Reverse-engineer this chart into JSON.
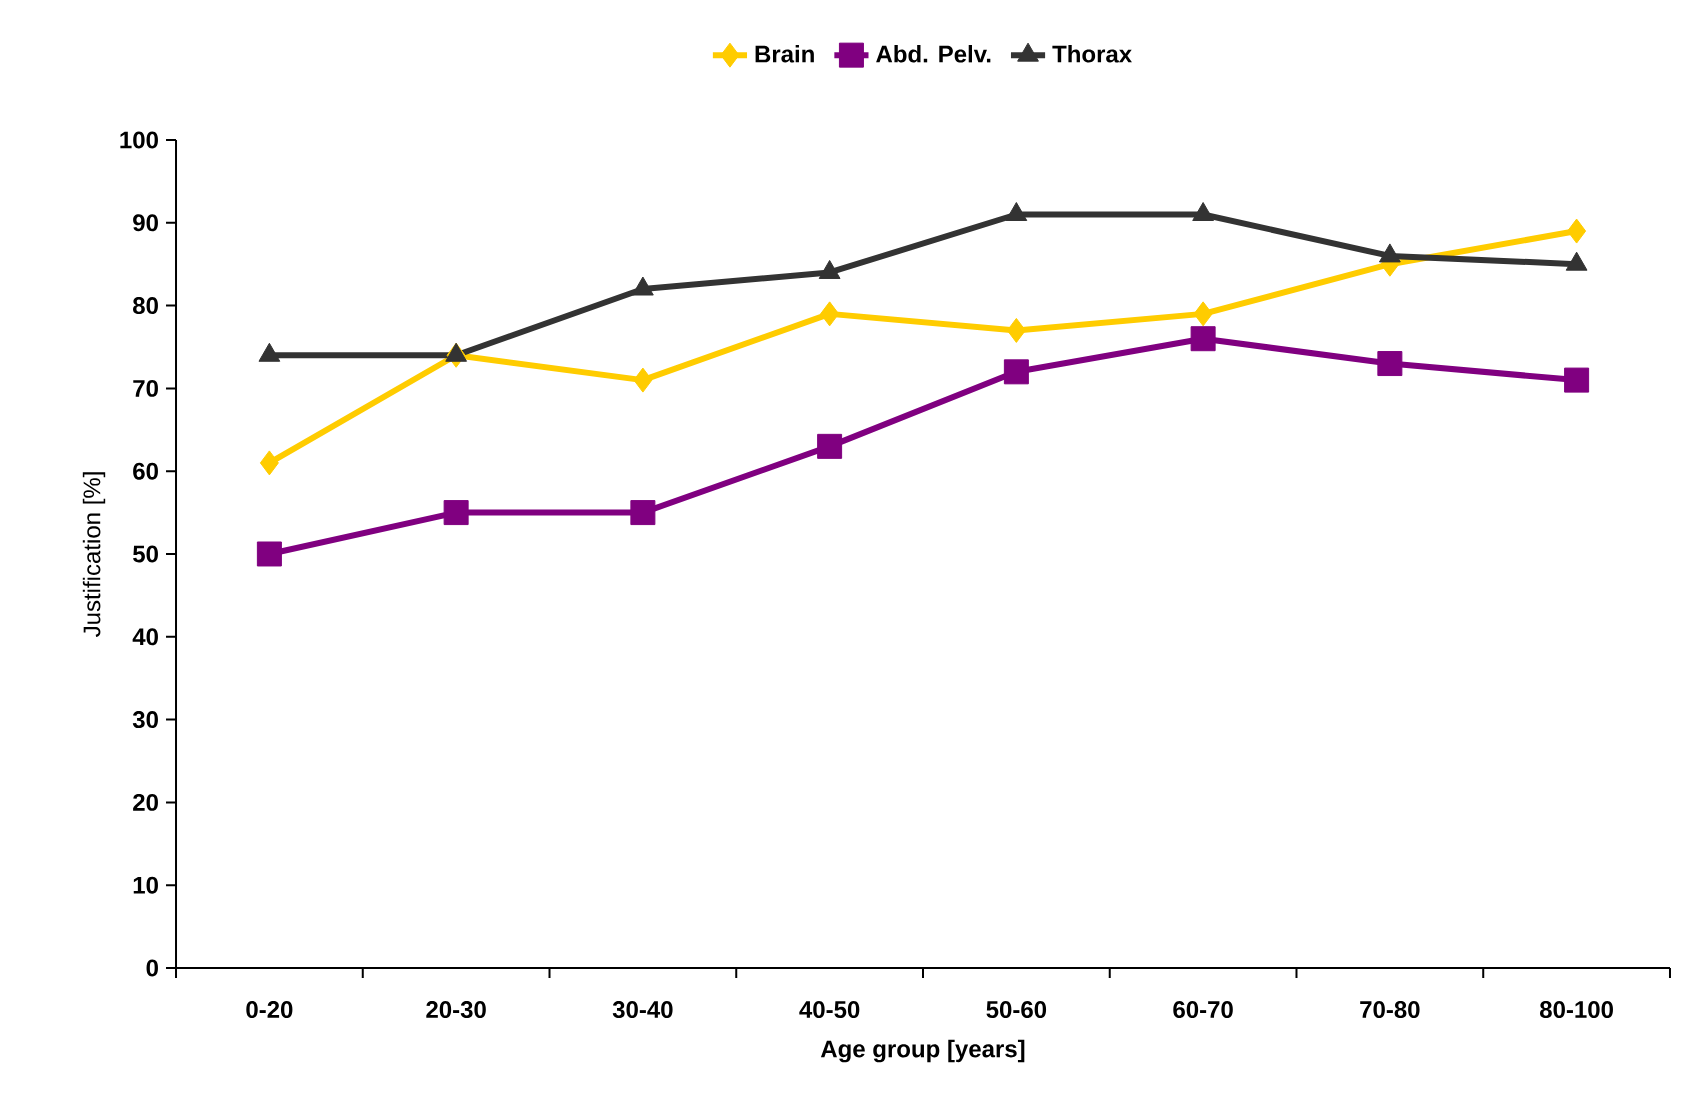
{
  "chart_data": {
    "type": "line",
    "xlabel": "Age group [years]",
    "ylabel": "Justification [%]",
    "categories": [
      "0-20",
      "20-30",
      "30-40",
      "40-50",
      "50-60",
      "60-70",
      "70-80",
      "80-100"
    ],
    "series": [
      {
        "name": "Brain",
        "color": "#ffcc00",
        "marker": "diamond",
        "values": [
          61,
          74,
          71,
          79,
          77,
          79,
          85,
          89
        ]
      },
      {
        "name": "Abd. Pelv.",
        "color": "#800080",
        "marker": "square",
        "values": [
          50,
          55,
          55,
          63,
          72,
          76,
          73,
          71
        ]
      },
      {
        "name": "Thorax",
        "color": "#333333",
        "marker": "triangle",
        "values": [
          74,
          74,
          82,
          84,
          91,
          91,
          86,
          85
        ]
      }
    ],
    "ylim": [
      0,
      100
    ],
    "yticks": [
      0,
      10,
      20,
      30,
      40,
      50,
      60,
      70,
      80,
      90,
      100
    ],
    "legend": "top",
    "grid": false,
    "line_style": "solid"
  }
}
